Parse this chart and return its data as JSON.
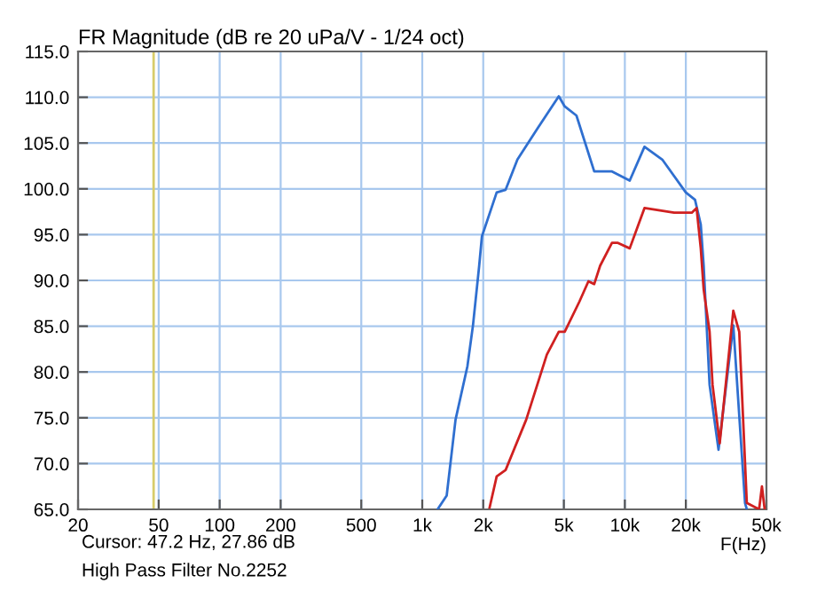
{
  "chart_data": {
    "type": "line",
    "title": "FR Magnitude (dB re 20 uPa/V - 1/24 oct)",
    "xlabel": "F(Hz)",
    "log": "x",
    "grid": true,
    "marker": "none",
    "line_style": "solid",
    "xlim": [
      20,
      50000
    ],
    "xticks": [
      20,
      50,
      100,
      200,
      500,
      {
        "value": 1000,
        "label": "1k"
      },
      {
        "value": 2000,
        "label": "2k"
      },
      {
        "value": 5000,
        "label": "5k"
      },
      {
        "value": 10000,
        "label": "10k"
      },
      {
        "value": 20000,
        "label": "20k"
      },
      {
        "value": 50000,
        "label": "50k"
      }
    ],
    "ylim": [
      65,
      115
    ],
    "yticks": [
      {
        "value": 65,
        "label": "65.0"
      },
      {
        "value": 70,
        "label": "70.0"
      },
      {
        "value": 75,
        "label": "75.0"
      },
      {
        "value": 80,
        "label": "80.0"
      },
      {
        "value": 85,
        "label": "85.0"
      },
      {
        "value": 90,
        "label": "90.0"
      },
      {
        "value": 95,
        "label": "95.0"
      },
      {
        "value": 100,
        "label": "100.0"
      },
      {
        "value": 105,
        "label": "105.0"
      },
      {
        "value": 110,
        "label": "110.0"
      },
      {
        "value": 115,
        "label": "115.0"
      }
    ],
    "ref_lines": [
      {
        "axis": "x",
        "value": 47.2,
        "color": "#d8cc6a"
      }
    ],
    "annotations": [
      "Cursor: 47.2 Hz, 27.86 dB",
      "High Pass Filter No.2252"
    ],
    "series": [
      {
        "color": "#2f6fd0",
        "x": [
          1190,
          1320,
          1460,
          1670,
          1780,
          1910,
          1970,
          2330,
          2580,
          2950,
          3730,
          4720,
          5050,
          5770,
          7060,
          8640,
          10570,
          12500,
          15300,
          20000,
          22200,
          23700,
          24500,
          26200,
          29000,
          34300,
          39200,
          40000
        ],
        "values": [
          65,
          66.5,
          74.8,
          80.6,
          85.1,
          91.6,
          94.8,
          99.6,
          99.9,
          103.2,
          106.7,
          110.1,
          109,
          108,
          101.9,
          101.9,
          100.9,
          104.6,
          103.2,
          99.6,
          98.8,
          96.1,
          91.6,
          78.6,
          71.5,
          85.1,
          65.7,
          65
        ]
      },
      {
        "color": "#d02020",
        "x": [
          2150,
          2330,
          2580,
          3260,
          4120,
          4720,
          5050,
          5970,
          6610,
          7060,
          7550,
          8640,
          9240,
          10570,
          12500,
          17500,
          21400,
          22600,
          23700,
          24500,
          26200,
          27100,
          29400,
          34300,
          36700,
          40000,
          46000,
          47500,
          49000
        ],
        "values": [
          65.2,
          68.6,
          69.3,
          74.8,
          81.9,
          84.4,
          84.4,
          87.7,
          89.9,
          89.6,
          91.6,
          94.1,
          94.1,
          93.5,
          97.9,
          97.4,
          97.4,
          97.9,
          93.5,
          89,
          84.4,
          78.6,
          72.2,
          86.7,
          84.4,
          65.7,
          65,
          67.5,
          65
        ]
      }
    ]
  }
}
